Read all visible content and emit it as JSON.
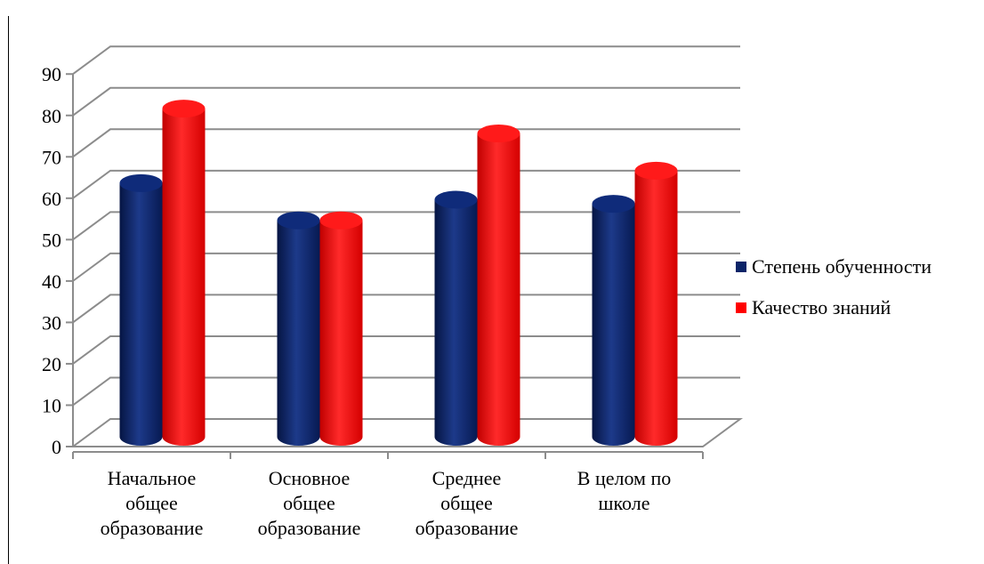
{
  "chart_data": {
    "type": "bar",
    "title": "",
    "xlabel": "",
    "ylabel": "",
    "ylim": [
      0,
      90
    ],
    "yticks": [
      0,
      10,
      20,
      30,
      40,
      50,
      60,
      70,
      80,
      90
    ],
    "grid": true,
    "legend_position": "right",
    "categories": [
      [
        "Начальное",
        "общее",
        "образование"
      ],
      [
        "Основное",
        "общее",
        "образование"
      ],
      [
        "Среднее",
        "общее",
        "образование"
      ],
      [
        "В целом по",
        "школе"
      ]
    ],
    "series": [
      {
        "name": "Степень обученности",
        "color": "#0b2468",
        "values": [
          63,
          54,
          59,
          58
        ]
      },
      {
        "name": "Качество знаний",
        "color": "#ff0000",
        "values": [
          81,
          54,
          75,
          66
        ]
      }
    ]
  }
}
